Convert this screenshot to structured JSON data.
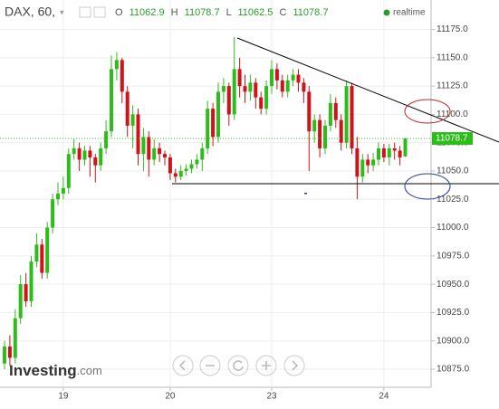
{
  "chart_data": {
    "type": "candlestick",
    "title": "DAX, 60,",
    "realtime_label": "realtime",
    "ohlc_labels": {
      "open": "O",
      "high": "H",
      "low": "L",
      "close": "C"
    },
    "logo": {
      "main": "Investing",
      "suffix": ".com"
    },
    "up_color": "#2dbd1b",
    "down_color": "#d0121a",
    "ylim": [
      10859,
      11197
    ],
    "yticks": [
      {
        "value": 10875,
        "label": "10875.0"
      },
      {
        "value": 10900,
        "label": "10900.0"
      },
      {
        "value": 10925,
        "label": "10925.0"
      },
      {
        "value": 10950,
        "label": "10950.0"
      },
      {
        "value": 10975,
        "label": "10975.0"
      },
      {
        "value": 11000,
        "label": "11000.0"
      },
      {
        "value": 11025,
        "label": "11025.0"
      },
      {
        "value": 11050,
        "label": "11050.0"
      },
      {
        "value": 11075,
        "label": "11075.0"
      },
      {
        "value": 11100,
        "label": "11100.0"
      },
      {
        "value": 11125,
        "label": "11125.0"
      },
      {
        "value": 11150,
        "label": "11150.0"
      },
      {
        "value": 11175,
        "label": "11175.0"
      }
    ],
    "grid": true,
    "categories": [
      null,
      null,
      null,
      null,
      null,
      null,
      null,
      null,
      null,
      null,
      null,
      "19",
      null,
      null,
      null,
      null,
      null,
      null,
      null,
      null,
      null,
      null,
      null,
      null,
      null,
      null,
      null,
      null,
      null,
      null,
      null,
      "20",
      null,
      null,
      null,
      null,
      null,
      null,
      null,
      null,
      null,
      null,
      null,
      null,
      null,
      null,
      null,
      null,
      null,
      null,
      "23",
      null,
      null,
      null,
      null,
      null,
      null,
      null,
      null,
      null,
      null,
      null,
      null,
      null,
      null,
      null,
      null,
      null,
      null,
      null,
      null,
      "24",
      null,
      null,
      null,
      null
    ],
    "open": [
      10880,
      10895,
      10885,
      10920,
      10950,
      10935,
      10970,
      10985,
      10960,
      11000,
      11025,
      11030,
      11035,
      11065,
      11070,
      11060,
      11068,
      11062,
      11055,
      11070,
      11085,
      11140,
      11148,
      11120,
      11090,
      11100,
      11065,
      11080,
      11060,
      11070,
      11065,
      11062,
      11048,
      11045,
      11050,
      11052,
      11056,
      11060,
      11070,
      11105,
      11080,
      11120,
      11125,
      11100,
      11140,
      11125,
      11120,
      11128,
      11115,
      11105,
      11125,
      11140,
      11130,
      11120,
      11130,
      11135,
      11128,
      11120,
      11085,
      11095,
      11070,
      11090,
      11110,
      11095,
      11075,
      11125,
      11070,
      11045,
      11060,
      11055,
      11060,
      11070,
      11062,
      11070,
      11068,
      11062.9
    ],
    "high": [
      10900,
      10905,
      10928,
      10958,
      10960,
      10975,
      10995,
      10990,
      11005,
      11030,
      11040,
      11045,
      11070,
      11078,
      11075,
      11072,
      11072,
      11065,
      11075,
      11095,
      11152,
      11155,
      11150,
      11125,
      11108,
      11105,
      11088,
      11085,
      11078,
      11075,
      11068,
      11065,
      11052,
      11055,
      11056,
      11060,
      11065,
      11075,
      11112,
      11110,
      11128,
      11132,
      11128,
      11168,
      11150,
      11135,
      11135,
      11132,
      11120,
      11130,
      11148,
      11145,
      11135,
      11135,
      11140,
      11140,
      11132,
      11125,
      11100,
      11100,
      11095,
      11118,
      11115,
      11100,
      11130,
      11128,
      11080,
      11065,
      11065,
      11066,
      11075,
      11074,
      11074,
      11075,
      11072,
      11078.7
    ],
    "low": [
      10875,
      10878,
      10880,
      10915,
      10930,
      10930,
      10965,
      10955,
      10955,
      10995,
      11020,
      11025,
      11030,
      11060,
      11050,
      11055,
      11045,
      11040,
      11050,
      11065,
      11080,
      11130,
      11110,
      11080,
      11070,
      11055,
      11050,
      11045,
      11055,
      11058,
      11055,
      11042,
      11040,
      11042,
      11046,
      11048,
      11052,
      11050,
      11065,
      11072,
      11075,
      11110,
      11090,
      11095,
      11115,
      11110,
      11112,
      11105,
      11100,
      11100,
      11118,
      11122,
      11115,
      11115,
      11125,
      11120,
      11110,
      11050,
      11075,
      11062,
      11065,
      11085,
      11088,
      11068,
      11070,
      11065,
      11025,
      11040,
      11048,
      11050,
      11055,
      11058,
      11055,
      11060,
      11055,
      11062.5
    ],
    "close": [
      10895,
      10885,
      10920,
      10950,
      10935,
      10970,
      10985,
      10960,
      11000,
      11025,
      11030,
      11035,
      11065,
      11070,
      11060,
      11068,
      11062,
      11055,
      11070,
      11085,
      11140,
      11148,
      11120,
      11090,
      11100,
      11065,
      11080,
      11060,
      11070,
      11065,
      11062,
      11048,
      11045,
      11050,
      11052,
      11056,
      11060,
      11070,
      11105,
      11080,
      11120,
      11125,
      11100,
      11140,
      11125,
      11120,
      11128,
      11115,
      11105,
      11125,
      11140,
      11130,
      11120,
      11130,
      11135,
      11128,
      11120,
      11085,
      11095,
      11070,
      11090,
      11110,
      11095,
      11075,
      11125,
      11070,
      11045,
      11060,
      11055,
      11060,
      11070,
      11062,
      11070,
      11068,
      11062,
      11078.7
    ]
  }
}
